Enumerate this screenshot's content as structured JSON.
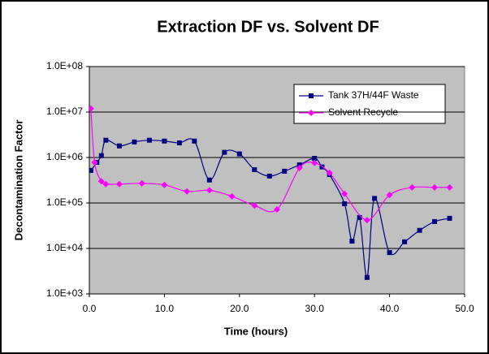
{
  "chart_data": {
    "type": "line",
    "title": "Extraction DF vs. Solvent DF",
    "x_label": "Time (hours)",
    "y_label": "Decontamination Factor",
    "log_y": true,
    "grid": true,
    "legend": "upper right",
    "xlim": [
      0,
      50
    ],
    "xticks": [
      {
        "value": 0,
        "label": "0.0"
      },
      {
        "value": 10,
        "label": "10.0"
      },
      {
        "value": 20,
        "label": "20.0"
      },
      {
        "value": 30,
        "label": "30.0"
      },
      {
        "value": 40,
        "label": "40.0"
      },
      {
        "value": 50,
        "label": "50.0"
      }
    ],
    "ylim": [
      1000,
      100000000
    ],
    "yticks": [
      {
        "value": 1000,
        "label": "1.0E+03"
      },
      {
        "value": 10000,
        "label": "1.0E+04"
      },
      {
        "value": 100000,
        "label": "1.0E+05"
      },
      {
        "value": 1000000,
        "label": "1.0E+06"
      },
      {
        "value": 10000000,
        "label": "1.0E+07"
      },
      {
        "value": 100000000,
        "label": "1.0E+08"
      }
    ],
    "series": [
      {
        "name": "Tank 37H/44F Waste",
        "color": "#000080",
        "marker": "square",
        "x": [
          0.2,
          1,
          1.6,
          2.2,
          4,
          6,
          8,
          10,
          12,
          14,
          16,
          18,
          20,
          22,
          24,
          26,
          28,
          30,
          31,
          32,
          34,
          35,
          36,
          37,
          38,
          40,
          42,
          44,
          46,
          48
        ],
        "values": [
          520000,
          780000,
          1100000,
          2400000,
          1800000,
          2200000,
          2400000,
          2300000,
          2100000,
          2300000,
          320000,
          1300000,
          1200000,
          540000,
          390000,
          500000,
          690000,
          960000,
          620000,
          420000,
          96000,
          14500,
          48000,
          2300,
          126000,
          8100,
          14000,
          25000,
          39000,
          46000
        ]
      },
      {
        "name": "Solvent Recycle",
        "color": "#ff00ff",
        "marker": "diamond",
        "x": [
          0.2,
          0.7,
          1.6,
          2.2,
          4,
          7,
          10,
          13,
          16,
          19,
          22,
          25,
          28,
          30,
          32,
          34,
          37,
          40,
          43,
          46,
          48
        ],
        "values": [
          12000000,
          780000,
          300000,
          260000,
          260000,
          270000,
          250000,
          180000,
          190000,
          140000,
          88000,
          72000,
          590000,
          760000,
          460000,
          160000,
          42000,
          150000,
          220000,
          220000,
          220000
        ]
      }
    ]
  }
}
